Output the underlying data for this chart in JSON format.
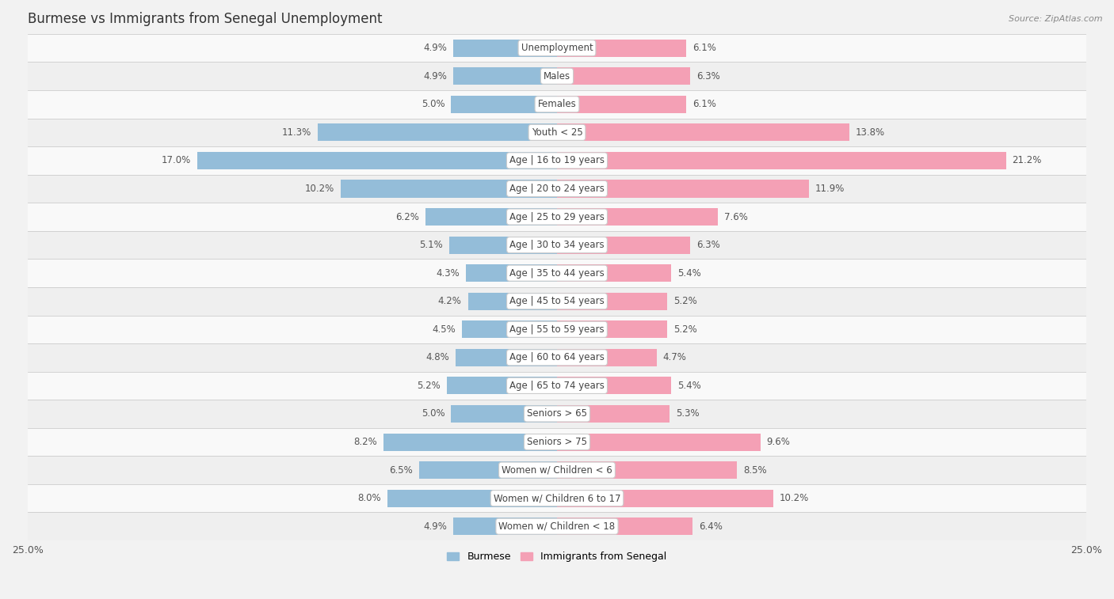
{
  "title": "Burmese vs Immigrants from Senegal Unemployment",
  "source": "Source: ZipAtlas.com",
  "categories": [
    "Unemployment",
    "Males",
    "Females",
    "Youth < 25",
    "Age | 16 to 19 years",
    "Age | 20 to 24 years",
    "Age | 25 to 29 years",
    "Age | 30 to 34 years",
    "Age | 35 to 44 years",
    "Age | 45 to 54 years",
    "Age | 55 to 59 years",
    "Age | 60 to 64 years",
    "Age | 65 to 74 years",
    "Seniors > 65",
    "Seniors > 75",
    "Women w/ Children < 6",
    "Women w/ Children 6 to 17",
    "Women w/ Children < 18"
  ],
  "burmese": [
    4.9,
    4.9,
    5.0,
    11.3,
    17.0,
    10.2,
    6.2,
    5.1,
    4.3,
    4.2,
    4.5,
    4.8,
    5.2,
    5.0,
    8.2,
    6.5,
    8.0,
    4.9
  ],
  "senegal": [
    6.1,
    6.3,
    6.1,
    13.8,
    21.2,
    11.9,
    7.6,
    6.3,
    5.4,
    5.2,
    5.2,
    4.7,
    5.4,
    5.3,
    9.6,
    8.5,
    10.2,
    6.4
  ],
  "burmese_color": "#94bdd9",
  "senegal_color": "#f4a0b5",
  "xlim": 25.0,
  "bar_height": 0.62,
  "bg_light": "#f2f2f2",
  "bg_dark": "#e4e4e4",
  "row_light": "#f9f9f9",
  "row_dark": "#efefef",
  "legend_burmese": "Burmese",
  "legend_senegal": "Immigrants from Senegal",
  "title_fontsize": 12,
  "label_fontsize": 8.5,
  "value_fontsize": 8.5
}
